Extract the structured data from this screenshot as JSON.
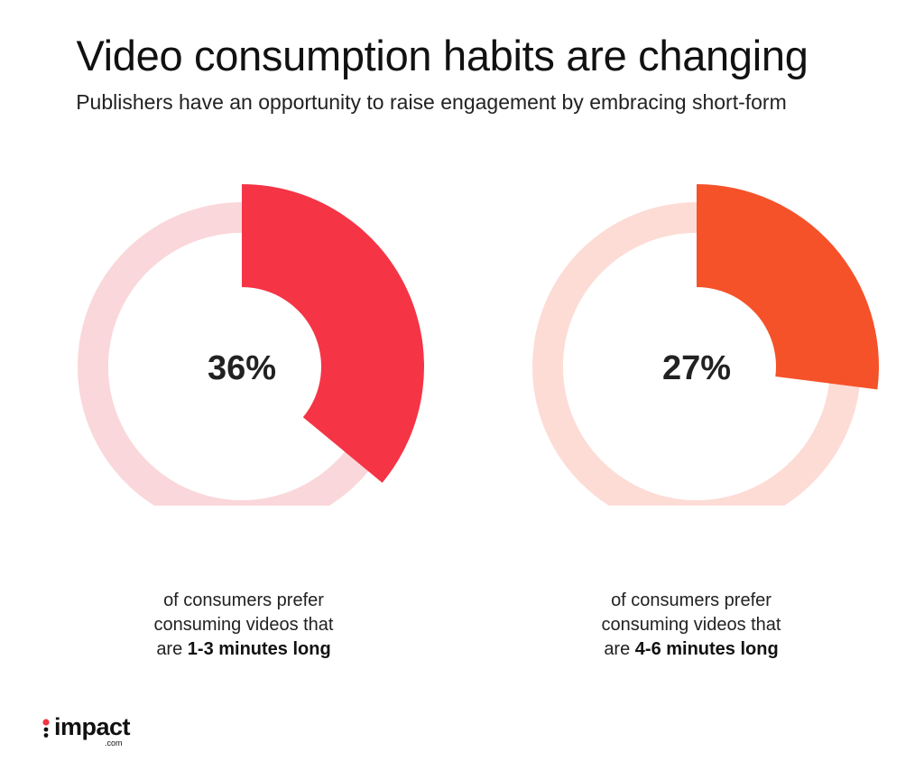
{
  "title": "Video consumption habits are changing",
  "subtitle": "Publishers have an opportunity to raise engagement by embracing short-form",
  "chart_data": [
    {
      "type": "pie",
      "style": "donut",
      "value_percent": 36,
      "label": "36%",
      "caption_prefix": "of consumers prefer consuming videos that are",
      "caption_line1": "of consumers prefer",
      "caption_line2": "consuming videos that",
      "caption_line3_prefix": "are",
      "caption_bold": "1-3 minutes long",
      "highlight_color": "#f53446",
      "track_color": "#fad7da"
    },
    {
      "type": "pie",
      "style": "donut",
      "value_percent": 27,
      "label": "27%",
      "caption_line1": "of consumers prefer",
      "caption_line2": "consuming videos that",
      "caption_line3_prefix": "are",
      "caption_bold": "4-6 minutes long",
      "highlight_color": "#f5522a",
      "track_color": "#fddcd6"
    }
  ],
  "logo": {
    "name": "impact",
    "suffix": ".com",
    "mark_colors": [
      "#f53446",
      "#111111"
    ]
  }
}
